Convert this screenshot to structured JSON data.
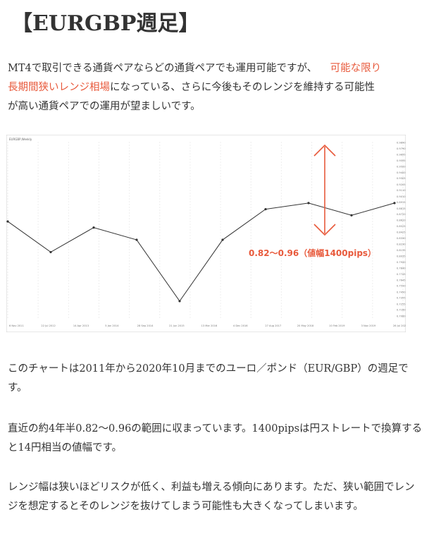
{
  "title": "【EURGBP週足】",
  "intro": {
    "part1": "MT4で取引できる通貨ペアならどの通貨ペアでも運用可能ですが、",
    "highlight_a": "可能な限り",
    "highlight_b": "長期間狭いレンジ相場",
    "part2": "になっている、さらに今後もそのレンジを維持する可能性",
    "part3": "が高い通貨ペアでの運用が望ましいです。"
  },
  "chart_data": {
    "type": "line",
    "title": "EURGBP,Weekly",
    "annotation": "0.82〜0.96（値幅1400pips）",
    "range": [
      0.82,
      0.96
    ],
    "ylim": [
      0.7,
      0.99
    ],
    "y_ticks": [
      "0.9890",
      "0.9790",
      "0.9695",
      "0.9595",
      "0.9500",
      "0.9400",
      "0.9305",
      "0.9205",
      "0.9110",
      "0.9010",
      "0.8915",
      "0.8815",
      "0.8720",
      "0.8620",
      "0.8525",
      "0.8425",
      "0.8330",
      "0.8230",
      "0.8135",
      "0.8035",
      "0.7940",
      "0.7840",
      "0.7745",
      "0.7645",
      "0.7550",
      "0.7450",
      "0.7355",
      "0.7255",
      "0.7160",
      "0.7060"
    ],
    "x_ticks": [
      "6 Nov 2011",
      "22 Jul 2012",
      "14 Apr 2013",
      "5 Jan 2014",
      "28 Sep 2014",
      "21 Jun 2015",
      "13 Mar 2016",
      "4 Dec 2016",
      "27 Aug 2017",
      "20 May 2018",
      "10 Feb 2019",
      "3 Nov 2019",
      "26 Jul 2020"
    ],
    "series": [
      {
        "x": [
          "2011",
          "2012",
          "2013",
          "2014",
          "2015",
          "2016",
          "2017",
          "2018",
          "2019",
          "2020"
        ],
        "values": [
          0.86,
          0.81,
          0.85,
          0.83,
          0.73,
          0.83,
          0.88,
          0.89,
          0.87,
          0.89
        ]
      }
    ],
    "colors": {
      "price": "#333333",
      "annotation": "#e85a3c"
    }
  },
  "para2": "このチャートは2011年から2020年10月までのユーロ／ポンド（EUR/GBP）の週足です。",
  "para3": "直近の約4年半0.82〜0.96の範囲に収まっています。1400pipsは円ストレートで換算すると14円相当の値幅です。",
  "para4": "レンジ幅は狭いほどリスクが低く、利益も増える傾向にあります。ただ、狭い範囲でレンジを想定するとそのレンジを抜けてしまう可能性も大きくなってしまいます。"
}
